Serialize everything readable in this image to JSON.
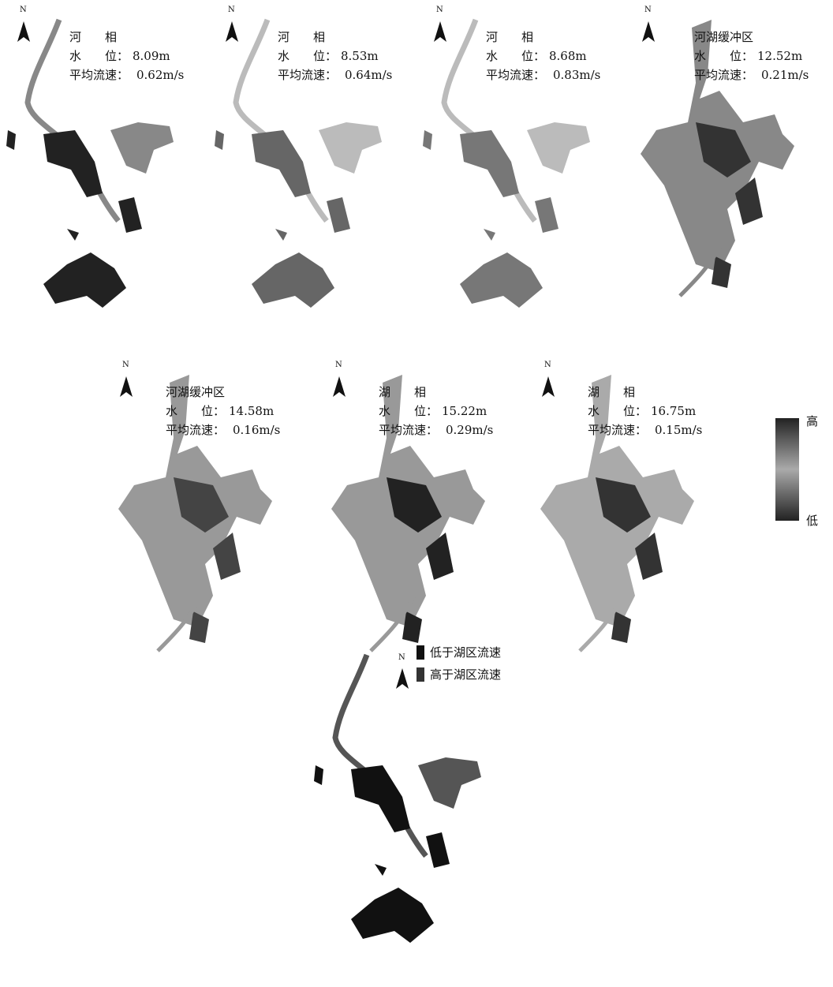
{
  "panels": [
    {
      "north": "N",
      "phase": "河　　相",
      "water_level_label": "水　　位：",
      "water_level": "8.09m",
      "velocity_label": "平均流速：",
      "velocity": "0.62m/s"
    },
    {
      "north": "N",
      "phase": "河　　相",
      "water_level_label": "水　　位：",
      "water_level": "8.53m",
      "velocity_label": "平均流速：",
      "velocity": "0.64m/s"
    },
    {
      "north": "N",
      "phase": "河　　相",
      "water_level_label": "水　　位：",
      "water_level": "8.68m",
      "velocity_label": "平均流速：",
      "velocity": "0.83m/s"
    },
    {
      "north": "N",
      "phase": "河湖缓冲区",
      "water_level_label": "水　　位：",
      "water_level": "12.52m",
      "velocity_label": "平均流速：",
      "velocity": "0.21m/s"
    },
    {
      "north": "N",
      "phase": "河湖缓冲区",
      "water_level_label": "水　　位：",
      "water_level": "14.58m",
      "velocity_label": "平均流速：",
      "velocity": "0.16m/s"
    },
    {
      "north": "N",
      "phase": "湖　　相",
      "water_level_label": "水　　位：",
      "water_level": "15.22m",
      "velocity_label": "平均流速：",
      "velocity": "0.29m/s"
    },
    {
      "north": "N",
      "phase": "湖　　相",
      "water_level_label": "水　　位：",
      "water_level": "16.75m",
      "velocity_label": "平均流速：",
      "velocity": "0.15m/s"
    }
  ],
  "colorbar": {
    "high": "高",
    "low": "低"
  },
  "bottom": {
    "north": "N",
    "legend": [
      "低于湖区流速",
      "高于湖区流速"
    ]
  }
}
